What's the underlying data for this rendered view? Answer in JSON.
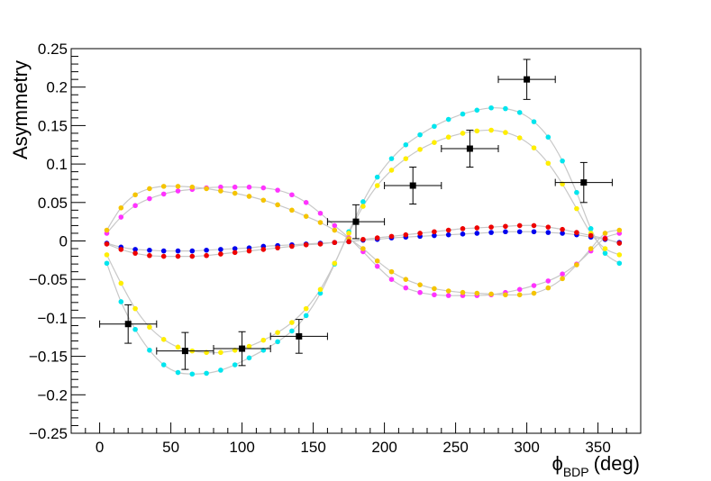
{
  "chart_data": {
    "type": "scatter",
    "title": "",
    "xlabel": "ϕBDP (deg)",
    "xlabel_symbol": "ϕ",
    "xlabel_subscript": "BDP",
    "xlabel_unit": "(deg)",
    "ylabel": "Asymmetry",
    "xlim": [
      -20,
      380
    ],
    "ylim": [
      -0.25,
      0.25
    ],
    "x_ticks": [
      0,
      50,
      100,
      150,
      200,
      250,
      300,
      350
    ],
    "x_tick_labels": [
      "0",
      "50",
      "100",
      "150",
      "200",
      "250",
      "300",
      "350"
    ],
    "y_ticks": [
      -0.25,
      -0.2,
      -0.15,
      -0.1,
      -0.05,
      0,
      0.05,
      0.1,
      0.15,
      0.2,
      0.25
    ],
    "y_tick_labels": [
      "−0.25",
      "−0.2",
      "−0.15",
      "−0.1",
      "−0.05",
      "0",
      "0.05",
      "0.1",
      "0.15",
      "0.2",
      "0.25"
    ],
    "grid": false,
    "legend": "none",
    "curve_x": [
      5,
      15,
      25,
      35,
      45,
      55,
      65,
      75,
      85,
      95,
      105,
      115,
      125,
      135,
      145,
      155,
      165,
      175,
      185,
      195,
      205,
      215,
      225,
      235,
      245,
      255,
      265,
      275,
      285,
      295,
      305,
      315,
      325,
      335,
      345,
      355,
      365
    ],
    "curves": [
      {
        "color": "#00e5ee",
        "values": [
          -0.029,
          -0.079,
          -0.115,
          -0.142,
          -0.161,
          -0.171,
          -0.173,
          -0.172,
          -0.168,
          -0.161,
          -0.152,
          -0.142,
          -0.131,
          -0.117,
          -0.097,
          -0.068,
          -0.03,
          0.012,
          0.051,
          0.083,
          0.107,
          0.125,
          0.138,
          0.149,
          0.158,
          0.165,
          0.17,
          0.173,
          0.172,
          0.167,
          0.155,
          0.135,
          0.104,
          0.063,
          0.016,
          -0.016,
          -0.029
        ]
      },
      {
        "color": "#ffee00",
        "values": [
          -0.018,
          -0.055,
          -0.088,
          -0.112,
          -0.128,
          -0.138,
          -0.143,
          -0.145,
          -0.145,
          -0.142,
          -0.137,
          -0.129,
          -0.119,
          -0.106,
          -0.088,
          -0.063,
          -0.029,
          0.01,
          0.045,
          0.072,
          0.092,
          0.107,
          0.119,
          0.128,
          0.135,
          0.14,
          0.143,
          0.144,
          0.141,
          0.134,
          0.121,
          0.101,
          0.074,
          0.042,
          0.01,
          -0.01,
          -0.018
        ]
      },
      {
        "color": "#ff33ff",
        "values": [
          0.01,
          0.031,
          0.046,
          0.055,
          0.061,
          0.065,
          0.067,
          0.069,
          0.07,
          0.07,
          0.07,
          0.069,
          0.066,
          0.06,
          0.05,
          0.036,
          0.02,
          0.004,
          -0.014,
          -0.033,
          -0.05,
          -0.061,
          -0.067,
          -0.07,
          -0.071,
          -0.071,
          -0.071,
          -0.07,
          -0.067,
          -0.063,
          -0.058,
          -0.052,
          -0.043,
          -0.03,
          -0.013,
          0.004,
          0.01
        ]
      },
      {
        "color": "#f5c400",
        "values": [
          0.014,
          0.043,
          0.06,
          0.068,
          0.071,
          0.071,
          0.07,
          0.068,
          0.065,
          0.062,
          0.058,
          0.053,
          0.047,
          0.04,
          0.032,
          0.024,
          0.014,
          0.003,
          -0.01,
          -0.026,
          -0.04,
          -0.05,
          -0.057,
          -0.062,
          -0.065,
          -0.067,
          -0.068,
          -0.069,
          -0.07,
          -0.07,
          -0.068,
          -0.061,
          -0.049,
          -0.031,
          -0.01,
          0.01,
          0.014
        ]
      },
      {
        "color": "#0000ee",
        "values": [
          -0.003,
          -0.008,
          -0.011,
          -0.012,
          -0.013,
          -0.013,
          -0.013,
          -0.012,
          -0.011,
          -0.01,
          -0.009,
          -0.007,
          -0.006,
          -0.005,
          -0.004,
          -0.003,
          -0.002,
          -0.001,
          0.001,
          0.002,
          0.004,
          0.005,
          0.006,
          0.007,
          0.008,
          0.009,
          0.01,
          0.011,
          0.012,
          0.012,
          0.012,
          0.011,
          0.01,
          0.008,
          0.005,
          0.002,
          -0.002
        ]
      },
      {
        "color": "#ee0000",
        "values": [
          -0.004,
          -0.011,
          -0.016,
          -0.019,
          -0.02,
          -0.02,
          -0.02,
          -0.019,
          -0.017,
          -0.015,
          -0.013,
          -0.011,
          -0.009,
          -0.007,
          -0.005,
          -0.004,
          -0.002,
          -0.001,
          0.002,
          0.004,
          0.006,
          0.008,
          0.01,
          0.012,
          0.014,
          0.016,
          0.017,
          0.018,
          0.019,
          0.02,
          0.02,
          0.018,
          0.015,
          0.011,
          0.007,
          0.003,
          -0.003
        ]
      }
    ],
    "measurements": [
      {
        "x": 20,
        "y": -0.108,
        "xerr": 20,
        "yerr": 0.025
      },
      {
        "x": 60,
        "y": -0.143,
        "xerr": 20,
        "yerr": 0.024
      },
      {
        "x": 100,
        "y": -0.14,
        "xerr": 20,
        "yerr": 0.022
      },
      {
        "x": 140,
        "y": -0.124,
        "xerr": 20,
        "yerr": 0.022
      },
      {
        "x": 180,
        "y": 0.025,
        "xerr": 20,
        "yerr": 0.022
      },
      {
        "x": 220,
        "y": 0.072,
        "xerr": 20,
        "yerr": 0.024
      },
      {
        "x": 260,
        "y": 0.12,
        "xerr": 20,
        "yerr": 0.024
      },
      {
        "x": 300,
        "y": 0.21,
        "xerr": 20,
        "yerr": 0.026
      },
      {
        "x": 340,
        "y": 0.076,
        "xerr": 20,
        "yerr": 0.026
      }
    ],
    "colors": {
      "curve_line": "#c8c8c8",
      "measurement": "#000000"
    }
  }
}
